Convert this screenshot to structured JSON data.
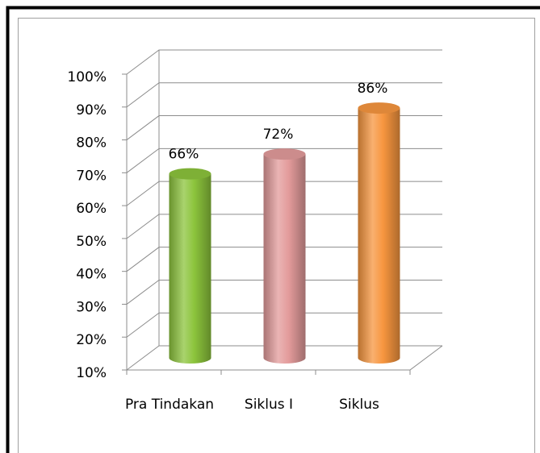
{
  "chart_data": {
    "type": "bar",
    "categories": [
      "Pra Tindakan",
      "Siklus I",
      "Siklus"
    ],
    "series": [
      {
        "values": [
          66,
          72,
          86
        ],
        "value_labels": [
          "66%",
          "72%",
          "86%"
        ],
        "colors": [
          "#8cc43c",
          "#e39b9b",
          "#f7963f"
        ]
      }
    ],
    "ylim": [
      10,
      100
    ],
    "yticks": [
      {
        "value": 10,
        "label": "10%"
      },
      {
        "value": 20,
        "label": "20%"
      },
      {
        "value": 30,
        "label": "30%"
      },
      {
        "value": 40,
        "label": "40%"
      },
      {
        "value": 50,
        "label": "50%"
      },
      {
        "value": 60,
        "label": "60%"
      },
      {
        "value": 70,
        "label": "70%"
      },
      {
        "value": 80,
        "label": "80%"
      },
      {
        "value": 90,
        "label": "90%"
      },
      {
        "value": 100,
        "label": "100%"
      }
    ],
    "grid": true
  }
}
